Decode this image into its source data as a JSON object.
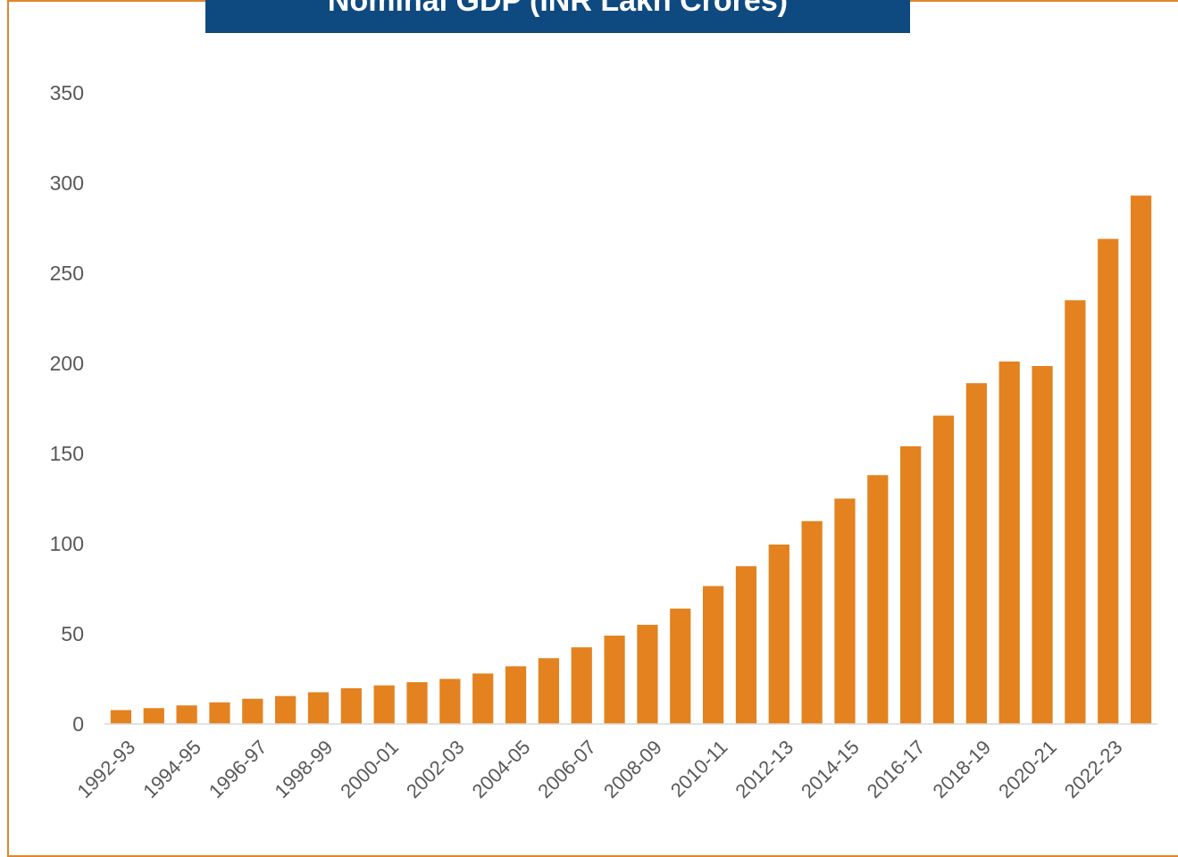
{
  "chart_data": {
    "type": "bar",
    "title": "Nominal GDP (INR Lakh Crores)",
    "xlabel": "",
    "ylabel": "",
    "ylim": [
      0,
      350
    ],
    "yticks": [
      0,
      50,
      100,
      150,
      200,
      250,
      300,
      350
    ],
    "grid": false,
    "legend": "none",
    "bar_color": "#e3821f",
    "title_bg_color": "#0e4a80",
    "frame_color": "#e3862a",
    "categories": [
      "1992-93",
      "1993-94",
      "1994-95",
      "1995-96",
      "1996-97",
      "1997-98",
      "1998-99",
      "1999-00",
      "2000-01",
      "2001-02",
      "2002-03",
      "2003-04",
      "2004-05",
      "2005-06",
      "2006-07",
      "2007-08",
      "2008-09",
      "2009-10",
      "2010-11",
      "2011-12",
      "2012-13",
      "2013-14",
      "2014-15",
      "2015-16",
      "2016-17",
      "2017-18",
      "2018-19",
      "2019-20",
      "2020-21",
      "2021-22",
      "2022-23",
      "2023-24"
    ],
    "x_tick_labels": [
      "1992-93",
      "1994-95",
      "1996-97",
      "1998-99",
      "2000-01",
      "2002-03",
      "2004-05",
      "2006-07",
      "2008-09",
      "2010-11",
      "2012-13",
      "2014-15",
      "2016-17",
      "2018-19",
      "2020-21",
      "2022-23"
    ],
    "values": [
      7.7,
      8.8,
      10.3,
      12.0,
      14.0,
      15.5,
      17.6,
      19.8,
      21.4,
      23.2,
      25.0,
      28.0,
      32.0,
      36.5,
      42.5,
      49.0,
      55.0,
      64.0,
      76.5,
      87.5,
      99.5,
      112.5,
      125.0,
      138.0,
      154.0,
      171.0,
      189.0,
      201.0,
      198.5,
      235.0,
      269.0,
      293.0
    ]
  }
}
